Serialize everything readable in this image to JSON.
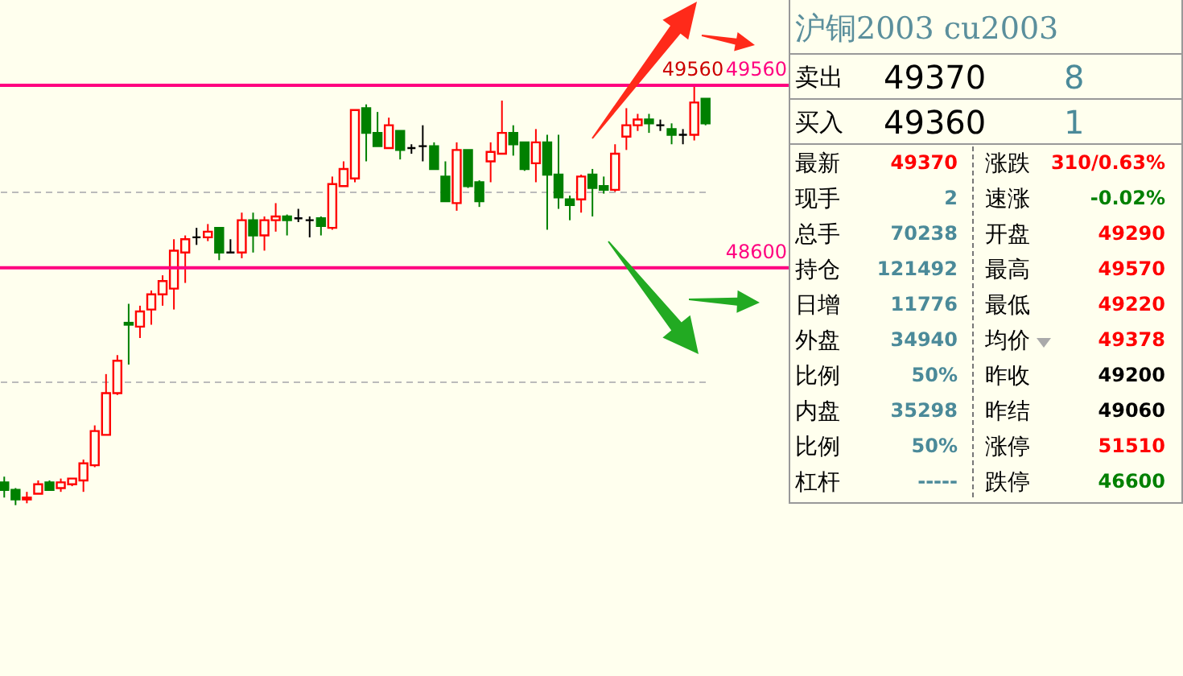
{
  "chart_data": [
    {
      "type": "candlestick",
      "categories": [
        null,
        null,
        null,
        null,
        null,
        null,
        null,
        null,
        null,
        null,
        null,
        null,
        null,
        null,
        null,
        null,
        null,
        null,
        null,
        null,
        null,
        null,
        null,
        null,
        null,
        null,
        null,
        null,
        null,
        null,
        null,
        null,
        null,
        null,
        null,
        null,
        null,
        null,
        null,
        null,
        null,
        null,
        null,
        null,
        null,
        null,
        null,
        null,
        null,
        null,
        null,
        null,
        null,
        null,
        null,
        null,
        null,
        null,
        null,
        null,
        null,
        null,
        null
      ],
      "ohlc": [
        [
          47470,
          47500,
          47390,
          47430
        ],
        [
          47430,
          47440,
          47350,
          47380
        ],
        [
          47380,
          47420,
          47360,
          47390
        ],
        [
          47410,
          47480,
          47410,
          47460
        ],
        [
          47470,
          47480,
          47430,
          47430
        ],
        [
          47440,
          47490,
          47420,
          47470
        ],
        [
          47460,
          47490,
          47450,
          47490
        ],
        [
          47480,
          47590,
          47420,
          47570
        ],
        [
          47560,
          47770,
          47550,
          47740
        ],
        [
          47720,
          48040,
          47720,
          47940
        ],
        [
          47940,
          48140,
          47930,
          48110
        ],
        [
          48310,
          48410,
          48090,
          48300
        ],
        [
          48290,
          48400,
          48230,
          48370
        ],
        [
          48380,
          48480,
          48300,
          48460
        ],
        [
          48460,
          48560,
          48400,
          48530
        ],
        [
          48490,
          48750,
          48380,
          48690
        ],
        [
          48680,
          48770,
          48520,
          48750
        ],
        [
          48760,
          48810,
          48720,
          48760
        ],
        [
          48760,
          48830,
          48740,
          48790
        ],
        [
          48810,
          48810,
          48640,
          48680
        ],
        [
          48680,
          48750,
          48680,
          48680
        ],
        [
          48680,
          48890,
          48650,
          48850
        ],
        [
          48850,
          48890,
          48680,
          48770
        ],
        [
          48770,
          48870,
          48690,
          48850
        ],
        [
          48850,
          48940,
          48790,
          48870
        ],
        [
          48870,
          48880,
          48770,
          48850
        ],
        [
          48860,
          48910,
          48840,
          48860
        ],
        [
          48850,
          48870,
          48760,
          48850
        ],
        [
          48860,
          48870,
          48770,
          48820
        ],
        [
          48810,
          49080,
          48800,
          49040
        ],
        [
          49030,
          49160,
          49030,
          49120
        ],
        [
          49070,
          49430,
          49050,
          49430
        ],
        [
          49440,
          49460,
          49160,
          49310
        ],
        [
          49310,
          49420,
          49240,
          49240
        ],
        [
          49230,
          49390,
          49230,
          49350
        ],
        [
          49320,
          49320,
          49170,
          49220
        ],
        [
          49230,
          49250,
          49200,
          49230
        ],
        [
          49240,
          49350,
          49160,
          49240
        ],
        [
          49240,
          49260,
          49120,
          49120
        ],
        [
          49080,
          49160,
          48950,
          48950
        ],
        [
          48940,
          49260,
          48900,
          49220
        ],
        [
          49220,
          49220,
          49020,
          49030
        ],
        [
          49050,
          49060,
          48920,
          48950
        ],
        [
          49160,
          49260,
          49050,
          49210
        ],
        [
          49200,
          49480,
          49200,
          49310
        ],
        [
          49310,
          49350,
          49190,
          49250
        ],
        [
          49260,
          49260,
          49110,
          49120
        ],
        [
          49150,
          49330,
          49050,
          49260
        ],
        [
          49260,
          49300,
          48800,
          49090
        ],
        [
          49090,
          49300,
          48910,
          48970
        ],
        [
          48960,
          48980,
          48850,
          48930
        ],
        [
          48960,
          49090,
          48890,
          49080
        ],
        [
          49090,
          49120,
          48870,
          49020
        ],
        [
          49030,
          49080,
          48990,
          49010
        ],
        [
          49010,
          49250,
          49000,
          49200
        ],
        [
          49290,
          49440,
          49220,
          49350
        ],
        [
          49350,
          49410,
          49320,
          49380
        ],
        [
          49380,
          49410,
          49310,
          49360
        ],
        [
          49350,
          49380,
          49320,
          49350
        ],
        [
          49330,
          49360,
          49250,
          49300
        ],
        [
          49300,
          49330,
          49250,
          49300
        ],
        [
          49300,
          49560,
          49270,
          49470
        ],
        [
          49490,
          49490,
          49350,
          49360
        ]
      ],
      "ylim": [
        46620,
        49840
      ],
      "yticks": [
        {
          "value": 48000,
          "label": null
        },
        {
          "value": 49000,
          "label": null
        }
      ],
      "grid": "y",
      "ref_lines": [
        {
          "axis": "y",
          "value": 49560,
          "label": "49560",
          "color": "#ff0080"
        },
        {
          "axis": "y",
          "value": 48600,
          "label": "48600",
          "color": "#ff0080"
        }
      ],
      "annotations": [
        {
          "text": "49560",
          "y": 49560
        }
      ]
    },
    {
      "type": "other",
      "title": "沪铜2003  cu2003",
      "annotations": [
        "卖出",
        "49370",
        "8",
        "买入",
        "49360",
        "1",
        "最新",
        "49370",
        "涨跌",
        "310/0.63%",
        "现手",
        "2",
        "速涨",
        "-0.02%",
        "总手",
        "70238",
        "开盘",
        "49290",
        "持仓",
        "121492",
        "最高",
        "49570",
        "日增",
        "11776",
        "最低",
        "49220",
        "外盘",
        "34940",
        "均价",
        "49378",
        "比例",
        "50%",
        "昨收",
        "49200",
        "内盘",
        "35298",
        "昨结",
        "49060",
        "比例",
        "50%",
        "涨停",
        "51510",
        "杠杆",
        "-----",
        "跌停",
        "46600"
      ]
    }
  ]
}
